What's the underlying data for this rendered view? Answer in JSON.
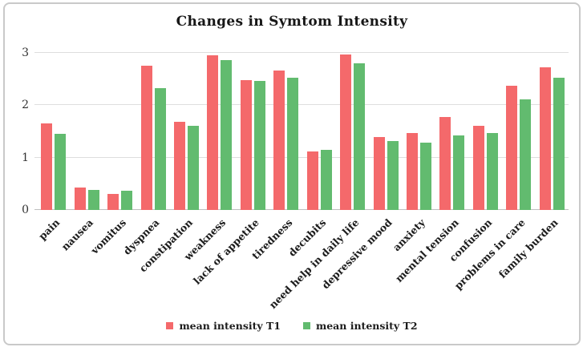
{
  "chart_data": {
    "type": "bar",
    "title": "Changes in Symtom Intensity",
    "categories": [
      "pain",
      "nausea",
      "vomitus",
      "dyspnea",
      "constipation",
      "weakness",
      "lack of appetite",
      "tiredness",
      "decubits",
      "need help in daily life",
      "depressive mood",
      "anxiety",
      "mental tension",
      "confusion",
      "problems in care",
      "family burden"
    ],
    "series": [
      {
        "name": "mean intensity T1",
        "color": "#F4696B",
        "values": [
          1.65,
          0.43,
          0.31,
          2.76,
          1.68,
          2.95,
          2.48,
          2.67,
          1.12,
          2.97,
          1.4,
          1.47,
          1.77,
          1.6,
          2.37,
          2.73
        ]
      },
      {
        "name": "mean intensity T2",
        "color": "#62BB6F",
        "values": [
          1.45,
          0.39,
          0.36,
          2.33,
          1.6,
          2.86,
          2.47,
          2.52,
          1.15,
          2.8,
          1.32,
          1.28,
          1.43,
          1.47,
          2.12,
          2.53
        ]
      }
    ],
    "xlabel": "",
    "ylabel": "",
    "ylim": [
      0,
      3
    ],
    "yticks": [
      0,
      1,
      2,
      3
    ],
    "grid": true,
    "legend_position": "bottom",
    "colors": {
      "gridline": "#dedede",
      "axis_line": "#bfbfbf",
      "text": "#1c1c1c",
      "border": "#c9c9c9"
    }
  }
}
